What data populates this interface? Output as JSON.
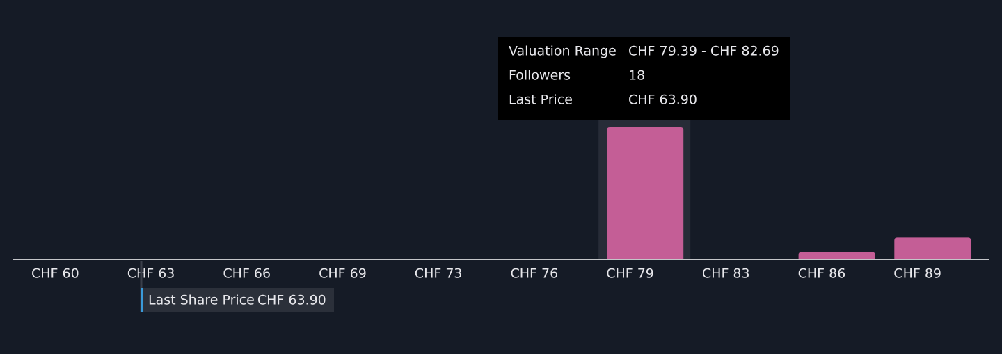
{
  "chart_data": {
    "type": "bar",
    "categories": [
      "CHF 60",
      "CHF 63",
      "CHF 66",
      "CHF 69",
      "CHF 73",
      "CHF 76",
      "CHF 79",
      "CHF 83",
      "CHF 86",
      "CHF 89"
    ],
    "values": [
      0,
      0,
      0,
      0,
      0,
      0,
      18,
      0,
      1,
      3
    ],
    "color": "#c45e96",
    "last_share_price": {
      "label": "Last Share Price",
      "value": 63.9,
      "value_label": "CHF 63.90"
    },
    "tooltip": {
      "category_index": 6,
      "rows": [
        [
          "Valuation Range",
          "CHF 79.39 - CHF 82.69"
        ],
        [
          "Followers",
          "18"
        ],
        [
          "Last Price",
          "CHF 63.90"
        ]
      ]
    }
  }
}
